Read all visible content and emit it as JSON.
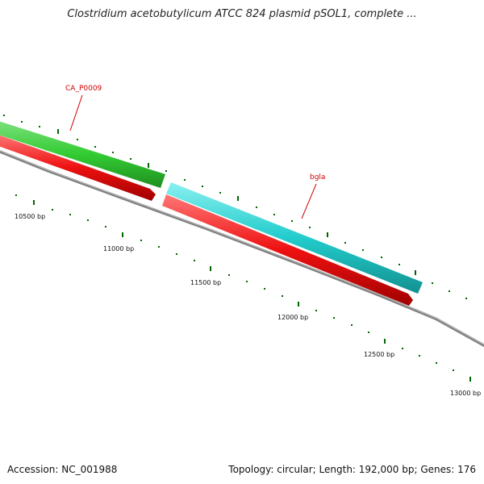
{
  "title": "Clostridium acetobutylicum ATCC 824 plasmid pSOL1, complete ...",
  "footer": {
    "accession": "Accession: NC_001988",
    "stats": "Topology: circular; Length: 192,000 bp; Genes: 176"
  },
  "genes": [
    {
      "name": "CA_P0009",
      "color": "#33cc33",
      "strand": "+"
    },
    {
      "name": "bgla",
      "color": "#22cccc",
      "strand": "+"
    }
  ],
  "cds_color": "#ee1111",
  "backbone_color": "#808080",
  "tick_color": "#006600",
  "bp_labels": [
    "10500 bp",
    "11000 bp",
    "11500 bp",
    "12000 bp",
    "12500 bp",
    "13000 bp"
  ]
}
